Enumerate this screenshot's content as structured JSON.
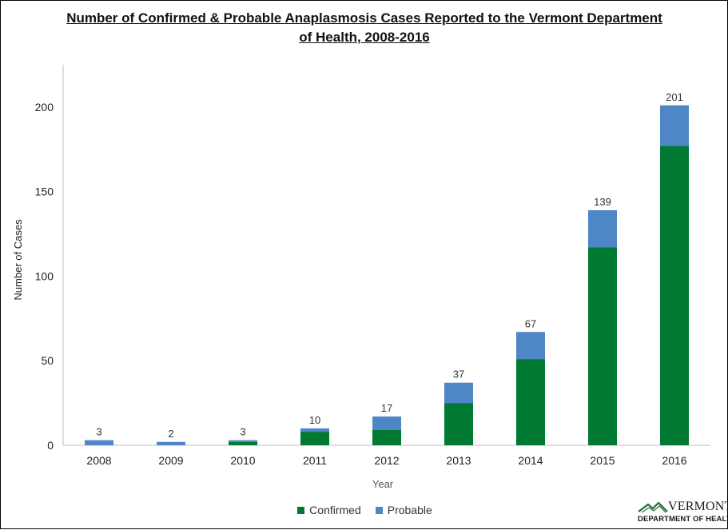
{
  "chart_data": {
    "type": "bar",
    "stacked": true,
    "title_lines": [
      "Number of Confirmed & Probable Anaplasmosis Cases Reported to the Vermont Department",
      "of Health, 2008-2016"
    ],
    "xlabel": "Year",
    "ylabel": "Number of Cases",
    "categories": [
      "2008",
      "2009",
      "2010",
      "2011",
      "2012",
      "2013",
      "2014",
      "2015",
      "2016"
    ],
    "series": [
      {
        "name": "Confirmed",
        "color": "#007a33",
        "values": [
          0,
          0,
          2,
          8,
          9,
          25,
          51,
          117,
          177
        ]
      },
      {
        "name": "Probable",
        "color": "#4f86c6",
        "values": [
          3,
          2,
          1,
          2,
          8,
          12,
          16,
          22,
          24
        ]
      }
    ],
    "totals": [
      3,
      2,
      3,
      10,
      17,
      37,
      67,
      139,
      201
    ],
    "yticks": [
      0,
      50,
      100,
      150,
      200
    ],
    "ylim": [
      0,
      225
    ],
    "grid": false,
    "legend_position": "bottom"
  },
  "logo": {
    "name": "VERMONT",
    "subtitle": "DEPARTMENT OF HEALTH"
  }
}
